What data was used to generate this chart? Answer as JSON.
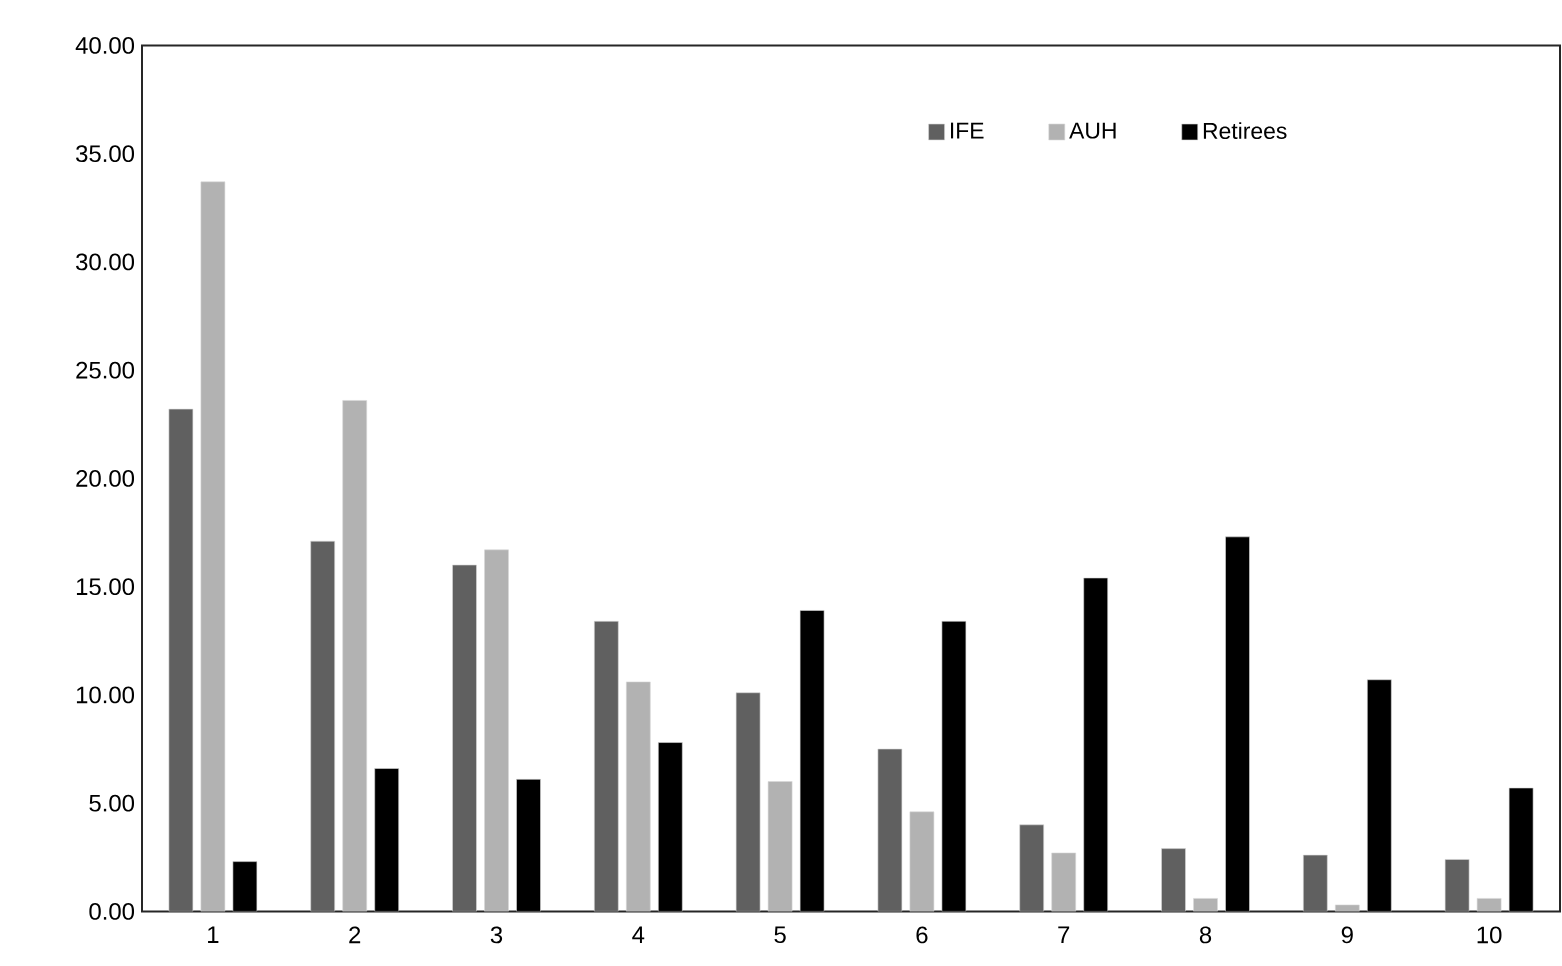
{
  "chart_data": {
    "type": "bar",
    "categories": [
      "1",
      "2",
      "3",
      "4",
      "5",
      "6",
      "7",
      "8",
      "9",
      "10"
    ],
    "series": [
      {
        "name": "IFE",
        "color": "#606060",
        "values": [
          23.2,
          17.1,
          16.0,
          13.4,
          10.1,
          7.5,
          4.0,
          2.9,
          2.6,
          2.4
        ]
      },
      {
        "name": "AUH",
        "color": "#b2b2b2",
        "values": [
          33.7,
          23.6,
          16.7,
          10.6,
          6.0,
          4.6,
          2.7,
          0.6,
          0.3,
          0.6
        ]
      },
      {
        "name": "Retirees",
        "color": "#000000",
        "values": [
          2.3,
          6.6,
          6.1,
          7.8,
          13.9,
          13.4,
          15.4,
          17.3,
          10.7,
          5.7
        ]
      }
    ],
    "ylim": [
      0,
      40
    ],
    "yticks": [
      {
        "value": 0,
        "label": "0.00"
      },
      {
        "value": 5,
        "label": "5.00"
      },
      {
        "value": 10,
        "label": "10.00"
      },
      {
        "value": 15,
        "label": "15.00"
      },
      {
        "value": 20,
        "label": "20.00"
      },
      {
        "value": 25,
        "label": "25.00"
      },
      {
        "value": 30,
        "label": "30.00"
      },
      {
        "value": 35,
        "label": "35.00"
      },
      {
        "value": 40,
        "label": "40.00"
      }
    ],
    "legend": "top right"
  }
}
